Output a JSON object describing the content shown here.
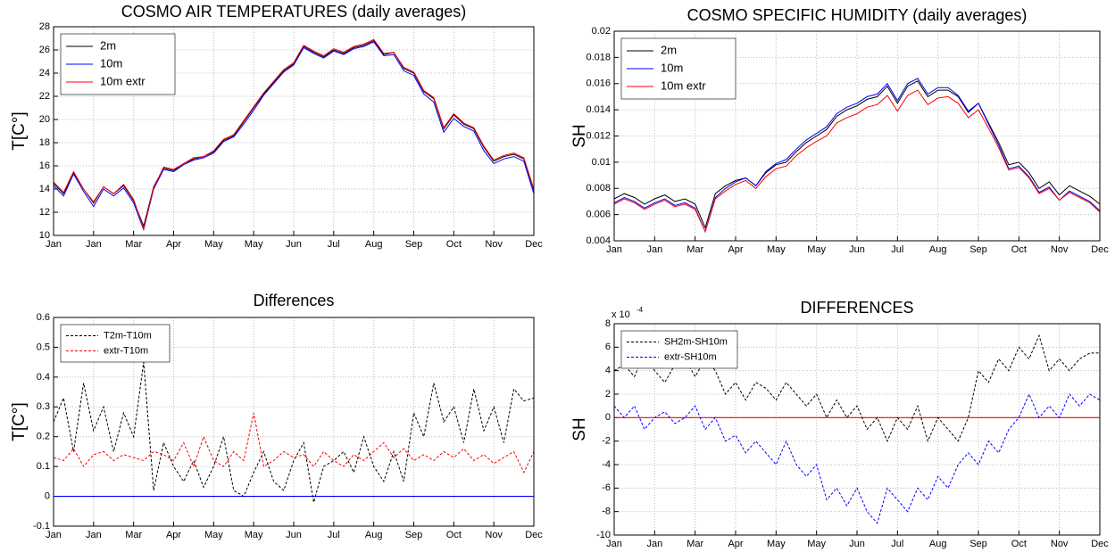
{
  "chart_data": [
    {
      "type": "line",
      "title": "COSMO AIR TEMPERATURES (daily averages)",
      "ylabel": "T[C°]",
      "categories": [
        "Jan",
        null,
        null,
        null,
        "Jan",
        null,
        null,
        null,
        "Mar",
        null,
        null,
        null,
        "Apr",
        null,
        null,
        null,
        "May",
        null,
        null,
        null,
        "May",
        null,
        null,
        null,
        "Jun",
        null,
        null,
        null,
        "Jul",
        null,
        null,
        null,
        "Aug",
        null,
        null,
        null,
        "Sep",
        null,
        null,
        null,
        "Oct",
        null,
        null,
        null,
        "Nov",
        null,
        null,
        null,
        "Dec"
      ],
      "ylim": [
        10,
        28
      ],
      "yticks": [
        10,
        12,
        14,
        16,
        18,
        20,
        22,
        24,
        26,
        28
      ],
      "grid": true,
      "legend": "upper left",
      "dashed": false,
      "series": [
        {
          "name": "2m",
          "color": "#000000",
          "values": [
            14.5,
            13.6,
            15.4,
            14.0,
            12.8,
            14.2,
            13.6,
            14.3,
            13.0,
            10.8,
            14.2,
            15.8,
            15.6,
            16.2,
            16.6,
            16.8,
            17.2,
            18.2,
            18.6,
            19.8,
            21.0,
            22.2,
            23.2,
            24.2,
            24.8,
            26.3,
            25.8,
            25.4,
            26.0,
            25.7,
            26.2,
            26.4,
            26.8,
            25.6,
            25.8,
            24.4,
            24.0,
            22.4,
            21.8,
            19.2,
            20.4,
            19.6,
            19.2,
            17.6,
            16.4,
            16.8,
            17.0,
            16.6,
            13.9
          ]
        },
        {
          "name": "10m",
          "color": "#0000ff",
          "values": [
            14.3,
            13.4,
            15.3,
            13.8,
            12.5,
            14.0,
            13.4,
            14.1,
            12.8,
            10.5,
            14.0,
            15.7,
            15.5,
            16.1,
            16.5,
            16.7,
            17.1,
            18.1,
            18.5,
            19.6,
            20.8,
            22.1,
            23.1,
            24.1,
            24.7,
            26.2,
            25.7,
            25.3,
            25.9,
            25.6,
            26.1,
            26.3,
            26.7,
            25.5,
            25.6,
            24.2,
            23.8,
            22.2,
            21.5,
            18.9,
            20.1,
            19.4,
            19.0,
            17.3,
            16.2,
            16.6,
            16.8,
            16.4,
            13.6
          ]
        },
        {
          "name": "10m extr",
          "color": "#ff0000",
          "values": [
            14.6,
            13.7,
            15.5,
            14.0,
            12.9,
            14.2,
            13.6,
            14.4,
            13.1,
            10.6,
            14.1,
            15.9,
            15.7,
            16.2,
            16.7,
            16.8,
            17.3,
            18.3,
            18.7,
            19.9,
            21.1,
            22.3,
            23.3,
            24.3,
            24.9,
            26.4,
            25.9,
            25.5,
            26.1,
            25.8,
            26.3,
            26.5,
            26.9,
            25.7,
            25.8,
            24.5,
            24.1,
            22.5,
            21.9,
            19.3,
            20.5,
            19.7,
            19.3,
            17.7,
            16.5,
            16.9,
            17.1,
            16.7,
            14.0
          ]
        }
      ]
    },
    {
      "type": "line",
      "title": "COSMO SPECIFIC HUMIDITY (daily averages)",
      "ylabel": "SH",
      "categories": [
        "Jan",
        null,
        null,
        null,
        "Jan",
        null,
        null,
        null,
        "Mar",
        null,
        null,
        null,
        "Apr",
        null,
        null,
        null,
        "May",
        null,
        null,
        null,
        "May",
        null,
        null,
        null,
        "Jun",
        null,
        null,
        null,
        "Jul",
        null,
        null,
        null,
        "Aug",
        null,
        null,
        null,
        "Sep",
        null,
        null,
        null,
        "Oct",
        null,
        null,
        null,
        "Nov",
        null,
        null,
        null,
        "Dec"
      ],
      "ylim": [
        0.004,
        0.02
      ],
      "yticks": [
        0.004,
        0.006,
        0.008,
        0.01,
        0.012,
        0.014,
        0.016,
        0.018,
        0.02
      ],
      "grid": true,
      "legend": "upper left",
      "dashed": false,
      "series": [
        {
          "name": "2m",
          "color": "#000000",
          "values": [
            0.0072,
            0.0076,
            0.0073,
            0.0068,
            0.0072,
            0.0075,
            0.007,
            0.0072,
            0.0068,
            0.005,
            0.0076,
            0.0082,
            0.0086,
            0.0088,
            0.0082,
            0.0092,
            0.0098,
            0.01,
            0.0108,
            0.0115,
            0.012,
            0.0125,
            0.0135,
            0.014,
            0.0143,
            0.0148,
            0.015,
            0.0158,
            0.0145,
            0.0158,
            0.0162,
            0.015,
            0.0155,
            0.0155,
            0.015,
            0.0138,
            0.0145,
            0.013,
            0.0115,
            0.0098,
            0.01,
            0.0092,
            0.008,
            0.0085,
            0.0075,
            0.0082,
            0.0078,
            0.0074,
            0.0068
          ]
        },
        {
          "name": "10m",
          "color": "#0000ff",
          "values": [
            0.0069,
            0.0073,
            0.007,
            0.0065,
            0.0069,
            0.0072,
            0.0067,
            0.0069,
            0.0065,
            0.0047,
            0.0073,
            0.008,
            0.0085,
            0.0088,
            0.0082,
            0.0093,
            0.0099,
            0.0102,
            0.011,
            0.0117,
            0.0122,
            0.0127,
            0.0137,
            0.0142,
            0.0145,
            0.015,
            0.0152,
            0.016,
            0.0147,
            0.016,
            0.0164,
            0.0152,
            0.0157,
            0.0157,
            0.0151,
            0.0139,
            0.0145,
            0.0129,
            0.0113,
            0.0095,
            0.0097,
            0.0089,
            0.0077,
            0.0081,
            0.0071,
            0.0078,
            0.0074,
            0.007,
            0.0063
          ]
        },
        {
          "name": "10m extr",
          "color": "#ff0000",
          "values": [
            0.0068,
            0.0072,
            0.0069,
            0.0064,
            0.0068,
            0.0071,
            0.0066,
            0.0068,
            0.0064,
            0.0047,
            0.0072,
            0.0078,
            0.0083,
            0.0086,
            0.008,
            0.0089,
            0.0095,
            0.0097,
            0.0105,
            0.0111,
            0.0116,
            0.012,
            0.013,
            0.0134,
            0.0137,
            0.0142,
            0.0144,
            0.0151,
            0.0139,
            0.0151,
            0.0155,
            0.0144,
            0.0149,
            0.015,
            0.0145,
            0.0134,
            0.014,
            0.0126,
            0.0111,
            0.0094,
            0.0096,
            0.0088,
            0.0076,
            0.008,
            0.0071,
            0.0077,
            0.0073,
            0.0069,
            0.0062
          ]
        }
      ]
    },
    {
      "type": "line",
      "title": "Differences",
      "ylabel": "T[C°]",
      "categories": [
        "Jan",
        null,
        null,
        null,
        "Jan",
        null,
        null,
        null,
        "Mar",
        null,
        null,
        null,
        "Apr",
        null,
        null,
        null,
        "May",
        null,
        null,
        null,
        "May",
        null,
        null,
        null,
        "Jun",
        null,
        null,
        null,
        "Jul",
        null,
        null,
        null,
        "Aug",
        null,
        null,
        null,
        "Sep",
        null,
        null,
        null,
        "Oct",
        null,
        null,
        null,
        "Nov",
        null,
        null,
        null,
        "Dec"
      ],
      "ylim": [
        -0.1,
        0.6
      ],
      "yticks": [
        -0.1,
        0,
        0.1,
        0.2,
        0.3,
        0.4,
        0.5,
        0.6
      ],
      "grid": true,
      "legend": "upper left",
      "dashed": true,
      "reference_line": {
        "value": 0,
        "color": "#0000ff"
      },
      "series": [
        {
          "name": "T2m-T10m",
          "color": "#000000",
          "values": [
            0.25,
            0.33,
            0.15,
            0.38,
            0.22,
            0.3,
            0.15,
            0.28,
            0.2,
            0.45,
            0.02,
            0.18,
            0.1,
            0.05,
            0.12,
            0.03,
            0.1,
            0.2,
            0.02,
            0.0,
            0.08,
            0.15,
            0.05,
            0.02,
            0.12,
            0.18,
            -0.02,
            0.1,
            0.12,
            0.15,
            0.08,
            0.2,
            0.1,
            0.05,
            0.15,
            0.05,
            0.28,
            0.2,
            0.38,
            0.25,
            0.3,
            0.18,
            0.36,
            0.22,
            0.3,
            0.18,
            0.36,
            0.32,
            0.33
          ]
        },
        {
          "name": "extr-T10m",
          "color": "#ff0000",
          "values": [
            0.13,
            0.12,
            0.16,
            0.1,
            0.14,
            0.15,
            0.12,
            0.14,
            0.13,
            0.12,
            0.15,
            0.14,
            0.12,
            0.18,
            0.1,
            0.2,
            0.12,
            0.1,
            0.15,
            0.12,
            0.28,
            0.1,
            0.12,
            0.15,
            0.13,
            0.14,
            0.1,
            0.15,
            0.12,
            0.1,
            0.14,
            0.12,
            0.15,
            0.18,
            0.13,
            0.16,
            0.12,
            0.14,
            0.12,
            0.15,
            0.13,
            0.16,
            0.12,
            0.14,
            0.11,
            0.13,
            0.15,
            0.08,
            0.15
          ]
        }
      ]
    },
    {
      "type": "line",
      "title": "DIFFERENCES",
      "ylabel": "SH",
      "y_multiplier": {
        "text": "x 10",
        "exponent": "-4"
      },
      "categories": [
        "Jan",
        null,
        null,
        null,
        "Jan",
        null,
        null,
        null,
        "Mar",
        null,
        null,
        null,
        "Apr",
        null,
        null,
        null,
        "May",
        null,
        null,
        null,
        "May",
        null,
        null,
        null,
        "Jun",
        null,
        null,
        null,
        "Jul",
        null,
        null,
        null,
        "Aug",
        null,
        null,
        null,
        "Sep",
        null,
        null,
        null,
        "Oct",
        null,
        null,
        null,
        "Nov",
        null,
        null,
        null,
        "Dec"
      ],
      "ylim": [
        -10,
        8
      ],
      "yticks": [
        -10,
        -8,
        -6,
        -4,
        -2,
        0,
        2,
        4,
        6,
        8
      ],
      "grid": true,
      "legend": "upper left",
      "dashed": true,
      "reference_line": {
        "value": 0,
        "color": "#ff0000"
      },
      "series": [
        {
          "name": "SH2m-SH10m",
          "color": "#000000",
          "values": [
            4,
            4.5,
            3.5,
            5.5,
            4,
            3,
            4.5,
            5,
            3.5,
            5,
            4,
            2,
            3,
            1.5,
            3,
            2.5,
            1.5,
            3,
            2,
            1,
            2,
            0,
            1.5,
            0,
            1,
            -1,
            0,
            -2,
            0,
            -1,
            1,
            -2,
            0,
            -1,
            -2,
            0,
            4,
            3,
            5,
            4,
            6,
            5,
            7,
            4,
            5,
            4,
            5,
            5.5,
            5.5
          ]
        },
        {
          "name": "extr-SH10m",
          "color": "#0000ff",
          "values": [
            1,
            0,
            1,
            -1,
            0,
            0.5,
            -0.5,
            0,
            1,
            -1,
            0,
            -2,
            -1.5,
            -3,
            -2,
            -3,
            -4,
            -2,
            -4,
            -5,
            -4,
            -7,
            -6,
            -7.5,
            -6,
            -8,
            -9,
            -6,
            -7,
            -8,
            -6,
            -7,
            -5,
            -6,
            -4,
            -3,
            -4,
            -2,
            -3,
            -1,
            0,
            2,
            0,
            1,
            0,
            2,
            1,
            2,
            1.5
          ]
        }
      ]
    }
  ]
}
